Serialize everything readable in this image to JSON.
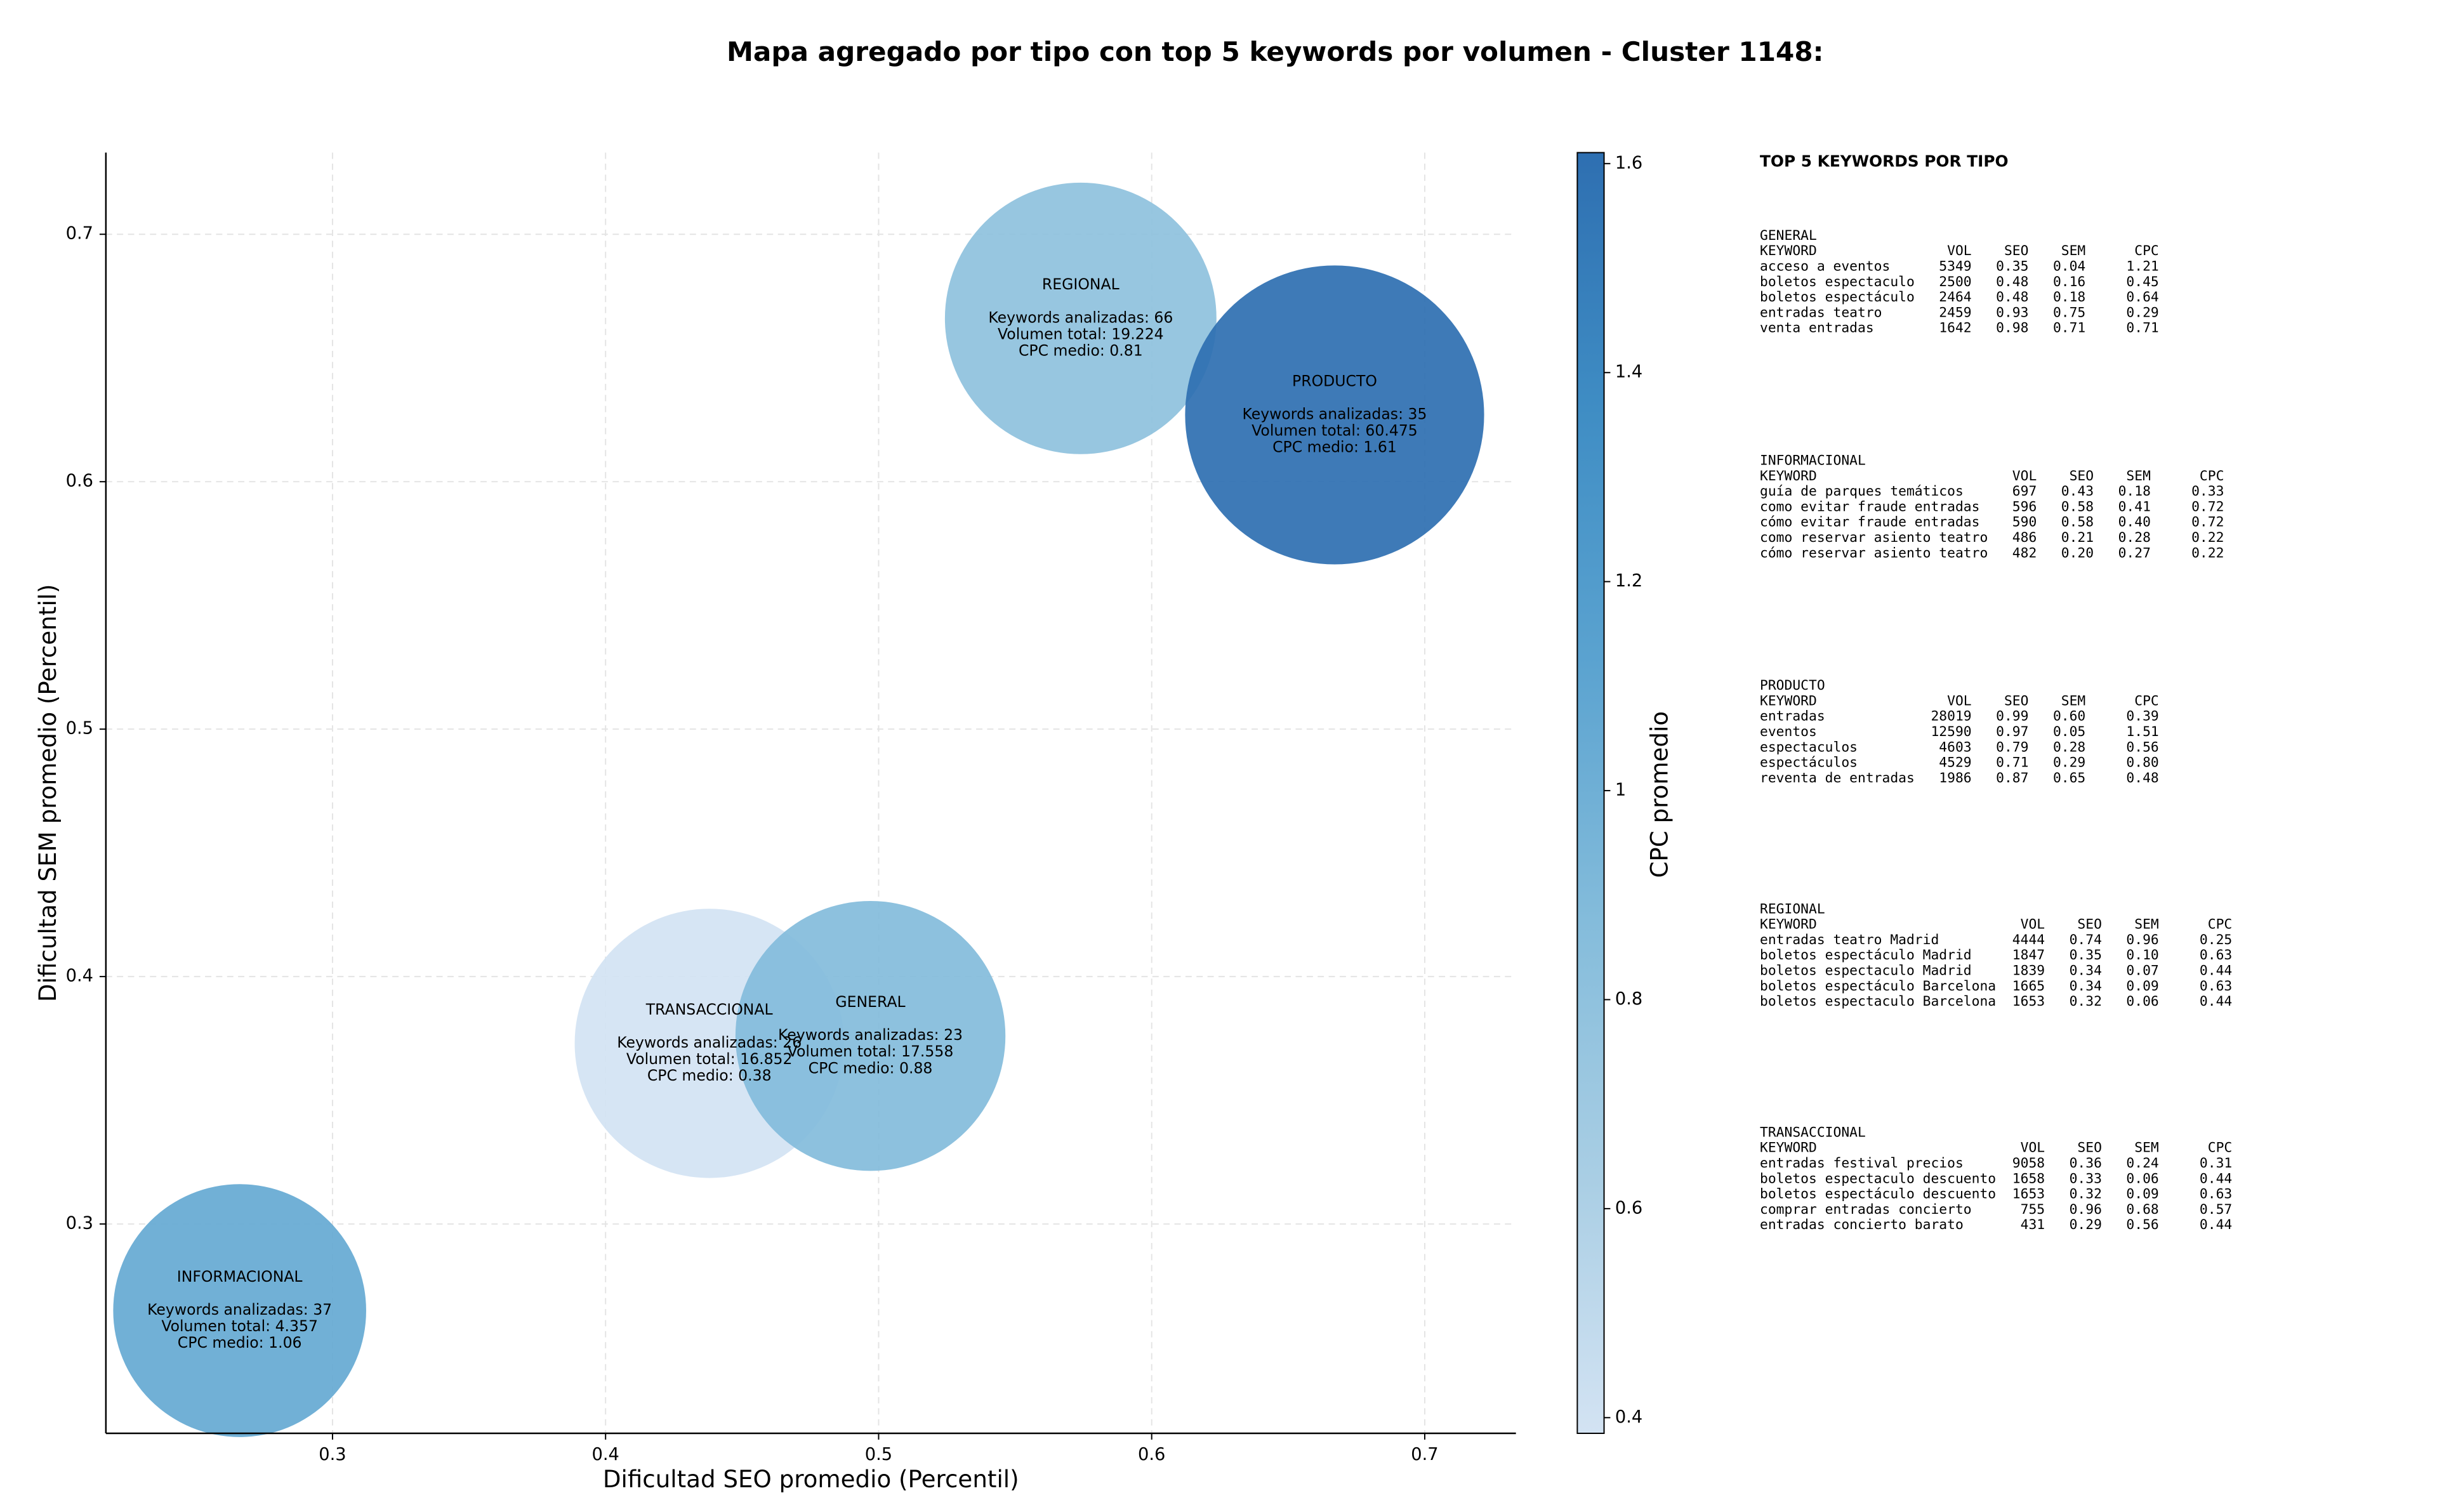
{
  "chart_data": {
    "type": "bubble",
    "title": "Mapa agregado por tipo con top 5 keywords por volumen - Cluster 1148:",
    "xlabel": "Dificultad SEO promedio (Percentil)",
    "ylabel": "Dificultad SEM promedio (Percentil)",
    "xlim": [
      0.217,
      0.7334
    ],
    "ylim": [
      0.2154,
      0.733
    ],
    "xticks": [
      0.3,
      0.4,
      0.5,
      0.6,
      0.7
    ],
    "yticks": [
      0.3,
      0.4,
      0.5,
      0.6,
      0.7
    ],
    "grid": true,
    "points": [
      {
        "name": "REGIONAL",
        "x": 0.574,
        "y": 0.666,
        "volume": 19224,
        "cpc": 0.81,
        "lines": [
          "Keywords analizadas: 66",
          "Volumen total: 19.224",
          "CPC medio: 0.81"
        ]
      },
      {
        "name": "PRODUCTO",
        "x": 0.667,
        "y": 0.627,
        "volume": 60475,
        "cpc": 1.61,
        "lines": [
          "Keywords analizadas: 35",
          "Volumen total: 60.475",
          "CPC medio: 1.61"
        ]
      },
      {
        "name": "TRANSACCIONAL",
        "x": 0.438,
        "y": 0.373,
        "volume": 16852,
        "cpc": 0.38,
        "lines": [
          "Keywords analizadas: 26",
          "Volumen total: 16.852",
          "CPC medio: 0.38"
        ]
      },
      {
        "name": "GENERAL",
        "x": 0.497,
        "y": 0.376,
        "volume": 17558,
        "cpc": 0.88,
        "lines": [
          "Keywords analizadas: 23",
          "Volumen total: 17.558",
          "CPC medio: 0.88"
        ]
      },
      {
        "name": "INFORMACIONAL",
        "x": 0.266,
        "y": 0.265,
        "volume": 4357,
        "cpc": 1.06,
        "lines": [
          "Keywords analizadas: 37",
          "Volumen total: 4.357",
          "CPC medio: 1.06"
        ]
      }
    ],
    "colorbar": {
      "label": "CPC promedio",
      "lim": [
        0.385,
        1.6105
      ],
      "ticks": [
        0.4,
        0.6,
        0.8,
        1.0,
        1.2,
        1.4,
        1.6
      ],
      "colors": [
        "#d3e3f3",
        "#a9cee4",
        "#84bcdb",
        "#5ba3d0",
        "#3f8dc4",
        "#2e6fb1"
      ]
    },
    "panel": {
      "title": "TOP 5 KEYWORDS POR TIPO",
      "groups": [
        {
          "name": "GENERAL",
          "lines": [
            "KEYWORD                VOL    SEO    SEM      CPC",
            "acceso a eventos      5349   0.35   0.04     1.21",
            "boletos espectaculo   2500   0.48   0.16     0.45",
            "boletos espectáculo   2464   0.48   0.18     0.64",
            "entradas teatro       2459   0.93   0.75     0.29",
            "venta entradas        1642   0.98   0.71     0.71"
          ]
        },
        {
          "name": "INFORMACIONAL",
          "lines": [
            "KEYWORD                        VOL    SEO    SEM      CPC",
            "guía de parques temáticos      697   0.43   0.18     0.33",
            "como evitar fraude entradas    596   0.58   0.41     0.72",
            "cómo evitar fraude entradas    590   0.58   0.40     0.72",
            "como reservar asiento teatro   486   0.21   0.28     0.22",
            "cómo reservar asiento teatro   482   0.20   0.27     0.22"
          ]
        },
        {
          "name": "PRODUCTO",
          "lines": [
            "KEYWORD                VOL    SEO    SEM      CPC",
            "entradas             28019   0.99   0.60     0.39",
            "eventos              12590   0.97   0.05     1.51",
            "espectaculos          4603   0.79   0.28     0.56",
            "espectáculos          4529   0.71   0.29     0.80",
            "reventa de entradas   1986   0.87   0.65     0.48"
          ]
        },
        {
          "name": "REGIONAL",
          "lines": [
            "KEYWORD                         VOL    SEO    SEM      CPC",
            "entradas teatro Madrid         4444   0.74   0.96     0.25",
            "boletos espectáculo Madrid     1847   0.35   0.10     0.63",
            "boletos espectaculo Madrid     1839   0.34   0.07     0.44",
            "boletos espectáculo Barcelona  1665   0.34   0.09     0.63",
            "boletos espectaculo Barcelona  1653   0.32   0.06     0.44"
          ]
        },
        {
          "name": "TRANSACCIONAL",
          "lines": [
            "KEYWORD                         VOL    SEO    SEM      CPC",
            "entradas festival precios      9058   0.36   0.24     0.31",
            "boletos espectaculo descuento  1658   0.33   0.06     0.44",
            "boletos espectáculo descuento  1653   0.32   0.09     0.63",
            "comprar entradas concierto      755   0.96   0.68     0.57",
            "entradas concierto barato       431   0.29   0.56     0.44"
          ]
        }
      ]
    }
  }
}
